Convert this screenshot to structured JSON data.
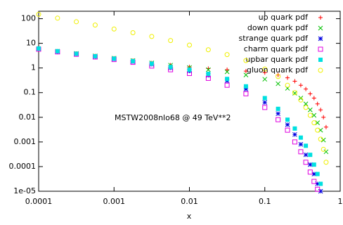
{
  "chart_data": {
    "type": "scatter",
    "xscale": "log",
    "yscale": "log",
    "x_label": "x",
    "annotation": "MSTW2008nlo68 @ 49 TeV**2",
    "legend": "top-right",
    "xlim": [
      0.0001,
      1
    ],
    "ylim": [
      1e-05,
      200
    ],
    "xticks": [
      0.0001,
      0.001,
      0.01,
      0.1,
      1
    ],
    "yticks": [
      100,
      10,
      1,
      0.1,
      0.01,
      0.001,
      0.0001,
      {
        "value": 1e-05,
        "label": "1e-05"
      }
    ],
    "x": [
      0.0001,
      0.000178,
      0.000316,
      0.000562,
      0.001,
      0.00178,
      0.00316,
      0.00562,
      0.01,
      0.0178,
      0.0316,
      0.0562,
      0.1,
      0.15,
      0.2,
      0.25,
      0.3,
      0.35,
      0.4,
      0.45,
      0.5,
      0.55,
      0.6,
      0.65
    ],
    "series": [
      {
        "name": "up quark pdf",
        "color": "#ff0000",
        "marker": "plus",
        "values": [
          6,
          4.8,
          3.9,
          3.1,
          2.5,
          2.0,
          1.6,
          1.3,
          1.1,
          0.95,
          0.85,
          0.75,
          0.65,
          0.52,
          0.4,
          0.29,
          0.2,
          0.14,
          0.09,
          0.06,
          0.035,
          0.02,
          0.01,
          0.004
        ]
      },
      {
        "name": "down quark pdf",
        "color": "#00c000",
        "marker": "cross",
        "values": [
          6,
          4.8,
          3.9,
          3.1,
          2.5,
          2.0,
          1.6,
          1.3,
          1.05,
          0.85,
          0.7,
          0.52,
          0.35,
          0.23,
          0.15,
          0.095,
          0.06,
          0.035,
          0.02,
          0.012,
          0.006,
          0.003,
          0.0012,
          0.0004
        ]
      },
      {
        "name": "strange quark pdf",
        "color": "#0000e0",
        "marker": "star",
        "values": [
          6,
          4.6,
          3.7,
          2.9,
          2.3,
          1.8,
          1.4,
          1.0,
          0.75,
          0.5,
          0.3,
          0.14,
          0.04,
          0.014,
          0.005,
          0.002,
          0.0008,
          0.0003,
          0.00012,
          5e-05,
          2e-05,
          1e-05,
          null,
          null
        ]
      },
      {
        "name": "charm quark pdf",
        "color": "#e000e0",
        "marker": "open-square",
        "values": [
          5.8,
          4.5,
          3.6,
          2.8,
          2.2,
          1.7,
          1.2,
          0.85,
          0.6,
          0.38,
          0.2,
          0.09,
          0.025,
          0.008,
          0.003,
          0.001,
          0.0004,
          0.00015,
          6e-05,
          2.5e-05,
          1.2e-05,
          null,
          null,
          null
        ]
      },
      {
        "name": "upbar quark pdf",
        "color": "#00e0e0",
        "marker": "filled-square",
        "values": [
          6.2,
          4.8,
          3.8,
          3.0,
          2.4,
          1.9,
          1.5,
          1.1,
          0.85,
          0.58,
          0.36,
          0.18,
          0.06,
          0.022,
          0.008,
          0.0035,
          0.0015,
          0.0007,
          0.0003,
          0.00012,
          5e-05,
          2e-05,
          null,
          null
        ]
      },
      {
        "name": "gluon quark pdf",
        "color": "#f0f000",
        "marker": "open-circle",
        "values": [
          150,
          105,
          75,
          55,
          38,
          27,
          19,
          13,
          8.5,
          5.5,
          3.5,
          2.0,
          0.9,
          0.45,
          0.2,
          0.1,
          0.05,
          0.025,
          0.012,
          0.006,
          0.003,
          0.0013,
          0.0005,
          0.00015
        ]
      }
    ]
  }
}
